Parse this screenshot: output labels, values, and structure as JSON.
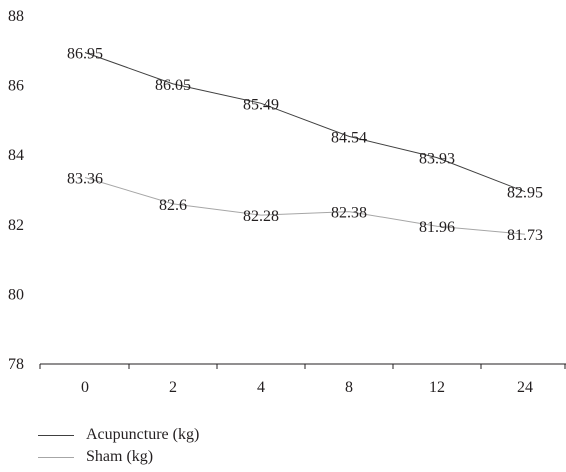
{
  "chart_data": {
    "type": "line",
    "categories": [
      "0",
      "2",
      "4",
      "8",
      "12",
      "24"
    ],
    "ylim": [
      78,
      88
    ],
    "yticks": [
      78,
      80,
      82,
      84,
      86,
      88
    ],
    "grid": false,
    "legend_position": "bottom-left",
    "series": [
      {
        "name": "Acupuncture (kg)",
        "color": "#404040",
        "values": [
          86.95,
          86.05,
          85.49,
          84.54,
          83.93,
          82.95
        ],
        "labels": [
          "86.95",
          "86.05",
          "85.49",
          "84.54",
          "83.93",
          "82.95"
        ]
      },
      {
        "name": "Sham (kg)",
        "color": "#a6a6a6",
        "values": [
          83.36,
          82.6,
          82.28,
          82.38,
          81.96,
          81.73
        ],
        "labels": [
          "83.36",
          "82.6",
          "82.28",
          "82.38",
          "81.96",
          "81.73"
        ]
      }
    ]
  }
}
